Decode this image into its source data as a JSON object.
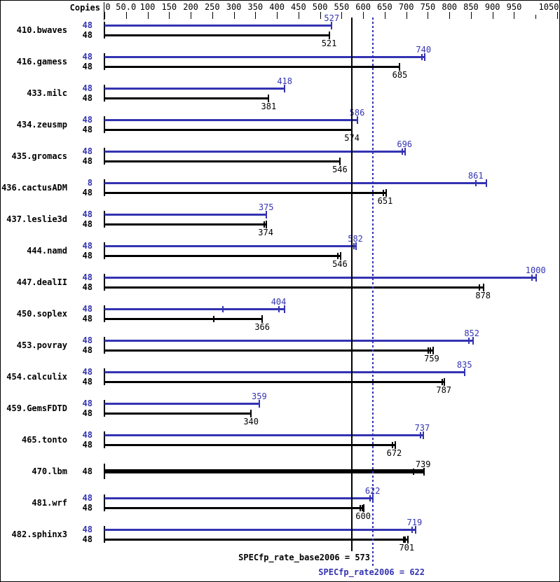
{
  "colors": {
    "peak": "#3333b2",
    "base": "#000000",
    "background": "#ffffff"
  },
  "chart_data": {
    "type": "bar",
    "orientation": "horizontal",
    "title": "",
    "copies_header": "Copies",
    "axis": {
      "min": 0,
      "max": 1050,
      "tick_step": 50,
      "tick_values": [
        0,
        50,
        100,
        150,
        200,
        250,
        300,
        350,
        400,
        450,
        500,
        550,
        600,
        650,
        700,
        750,
        800,
        850,
        900,
        950,
        1000,
        1050
      ],
      "tick_labels": [
        "0",
        "50.0",
        "100",
        "150",
        "200",
        "250",
        "300",
        "350",
        "400",
        "450",
        "500",
        "550",
        "600",
        "650",
        "700",
        "750",
        "800",
        "850",
        "900",
        "950",
        "",
        "1050"
      ]
    },
    "benchmarks": [
      {
        "name": "410.bwaves",
        "rows": [
          {
            "series": "peak",
            "copies": "48",
            "label": "527",
            "value": 527,
            "bar_end": 527,
            "run_marks": []
          },
          {
            "series": "base",
            "copies": "48",
            "label": "521",
            "value": 521,
            "bar_end": 521,
            "run_marks": []
          }
        ]
      },
      {
        "name": "416.gamess",
        "rows": [
          {
            "series": "peak",
            "copies": "48",
            "label": "740",
            "value": 740,
            "bar_end": 742,
            "run_marks": [
              736
            ]
          },
          {
            "series": "base",
            "copies": "48",
            "label": "685",
            "value": 685,
            "bar_end": 685,
            "run_marks": []
          }
        ]
      },
      {
        "name": "433.milc",
        "rows": [
          {
            "series": "peak",
            "copies": "48",
            "label": "418",
            "value": 418,
            "bar_end": 418,
            "run_marks": []
          },
          {
            "series": "base",
            "copies": "48",
            "label": "381",
            "value": 381,
            "bar_end": 381,
            "run_marks": []
          }
        ]
      },
      {
        "name": "434.zeusmp",
        "rows": [
          {
            "series": "peak",
            "copies": "48",
            "label": "586",
            "value": 586,
            "bar_end": 586,
            "run_marks": []
          },
          {
            "series": "base",
            "copies": "48",
            "label": "574",
            "value": 574,
            "bar_end": 574,
            "run_marks": []
          }
        ]
      },
      {
        "name": "435.gromacs",
        "rows": [
          {
            "series": "peak",
            "copies": "48",
            "label": "696",
            "value": 696,
            "bar_end": 698,
            "run_marks": [
              691
            ]
          },
          {
            "series": "base",
            "copies": "48",
            "label": "546",
            "value": 546,
            "bar_end": 546,
            "run_marks": []
          }
        ]
      },
      {
        "name": "436.cactusADM",
        "rows": [
          {
            "series": "peak",
            "copies": "8",
            "label": "861",
            "value": 861,
            "bar_end": 886,
            "run_marks": [
              861
            ]
          },
          {
            "series": "base",
            "copies": "48",
            "label": "651",
            "value": 651,
            "bar_end": 653,
            "run_marks": [
              647
            ]
          }
        ]
      },
      {
        "name": "437.leslie3d",
        "rows": [
          {
            "series": "peak",
            "copies": "48",
            "label": "375",
            "value": 375,
            "bar_end": 375,
            "run_marks": []
          },
          {
            "series": "base",
            "copies": "48",
            "label": "374",
            "value": 374,
            "bar_end": 376,
            "run_marks": [
              371
            ]
          }
        ]
      },
      {
        "name": "444.namd",
        "rows": [
          {
            "series": "peak",
            "copies": "48",
            "label": "582",
            "value": 582,
            "bar_end": 584,
            "run_marks": [
              578
            ]
          },
          {
            "series": "base",
            "copies": "48",
            "label": "546",
            "value": 546,
            "bar_end": 548,
            "run_marks": [
              542
            ]
          }
        ]
      },
      {
        "name": "447.dealII",
        "rows": [
          {
            "series": "peak",
            "copies": "48",
            "label": "1000",
            "value": 1000,
            "bar_end": 1002,
            "run_marks": [
              991
            ]
          },
          {
            "series": "base",
            "copies": "48",
            "label": "878",
            "value": 878,
            "bar_end": 880,
            "run_marks": [
              870
            ]
          }
        ]
      },
      {
        "name": "450.soplex",
        "rows": [
          {
            "series": "peak",
            "copies": "48",
            "label": "404",
            "value": 404,
            "bar_end": 418,
            "run_marks": [
              275,
              404
            ]
          },
          {
            "series": "base",
            "copies": "48",
            "label": "366",
            "value": 366,
            "bar_end": 366,
            "run_marks": [
              254
            ]
          }
        ]
      },
      {
        "name": "453.povray",
        "rows": [
          {
            "series": "peak",
            "copies": "48",
            "label": "852",
            "value": 852,
            "bar_end": 855,
            "run_marks": [
              846
            ]
          },
          {
            "series": "base",
            "copies": "48",
            "label": "759",
            "value": 759,
            "bar_end": 762,
            "run_marks": [
              751,
              756
            ]
          }
        ]
      },
      {
        "name": "454.calculix",
        "rows": [
          {
            "series": "peak",
            "copies": "48",
            "label": "835",
            "value": 835,
            "bar_end": 835,
            "run_marks": []
          },
          {
            "series": "base",
            "copies": "48",
            "label": "787",
            "value": 787,
            "bar_end": 789,
            "run_marks": [
              783
            ]
          }
        ]
      },
      {
        "name": "459.GemsFDTD",
        "rows": [
          {
            "series": "peak",
            "copies": "48",
            "label": "359",
            "value": 359,
            "bar_end": 359,
            "run_marks": []
          },
          {
            "series": "base",
            "copies": "48",
            "label": "340",
            "value": 340,
            "bar_end": 340,
            "run_marks": []
          }
        ]
      },
      {
        "name": "465.tonto",
        "rows": [
          {
            "series": "peak",
            "copies": "48",
            "label": "737",
            "value": 737,
            "bar_end": 739,
            "run_marks": [
              733
            ]
          },
          {
            "series": "base",
            "copies": "48",
            "label": "672",
            "value": 672,
            "bar_end": 674,
            "run_marks": [
              668
            ]
          }
        ]
      },
      {
        "name": "470.lbm",
        "rows": [
          {
            "series": "base",
            "single": true,
            "thick": true,
            "copies": "48",
            "label": "739",
            "value": 739,
            "bar_end": 741,
            "run_marks": [
              716
            ]
          }
        ]
      },
      {
        "name": "481.wrf",
        "rows": [
          {
            "series": "peak",
            "copies": "48",
            "label": "622",
            "value": 622,
            "bar_end": 623,
            "run_marks": [
              616
            ]
          },
          {
            "series": "base",
            "copies": "48",
            "label": "600",
            "value": 600,
            "bar_end": 602,
            "run_marks": [
              594,
              598
            ]
          }
        ]
      },
      {
        "name": "482.sphinx3",
        "rows": [
          {
            "series": "peak",
            "copies": "48",
            "label": "719",
            "value": 719,
            "bar_end": 721,
            "run_marks": [
              713
            ]
          },
          {
            "series": "base",
            "copies": "48",
            "label": "701",
            "value": 701,
            "bar_end": 703,
            "run_marks": [
              694,
              698
            ]
          }
        ]
      }
    ],
    "reference_lines": [
      {
        "name": "base",
        "style": "solid",
        "color": "#000000",
        "value": 573
      },
      {
        "name": "peak",
        "style": "dotted",
        "color": "#3333b2",
        "value": 622
      }
    ],
    "annotations": [
      {
        "name": "base_result",
        "text": "SPECfp_rate_base2006 = 573",
        "color": "#000000"
      },
      {
        "name": "peak_result",
        "text": "SPECfp_rate2006 = 622",
        "color": "#3333b2"
      }
    ]
  }
}
